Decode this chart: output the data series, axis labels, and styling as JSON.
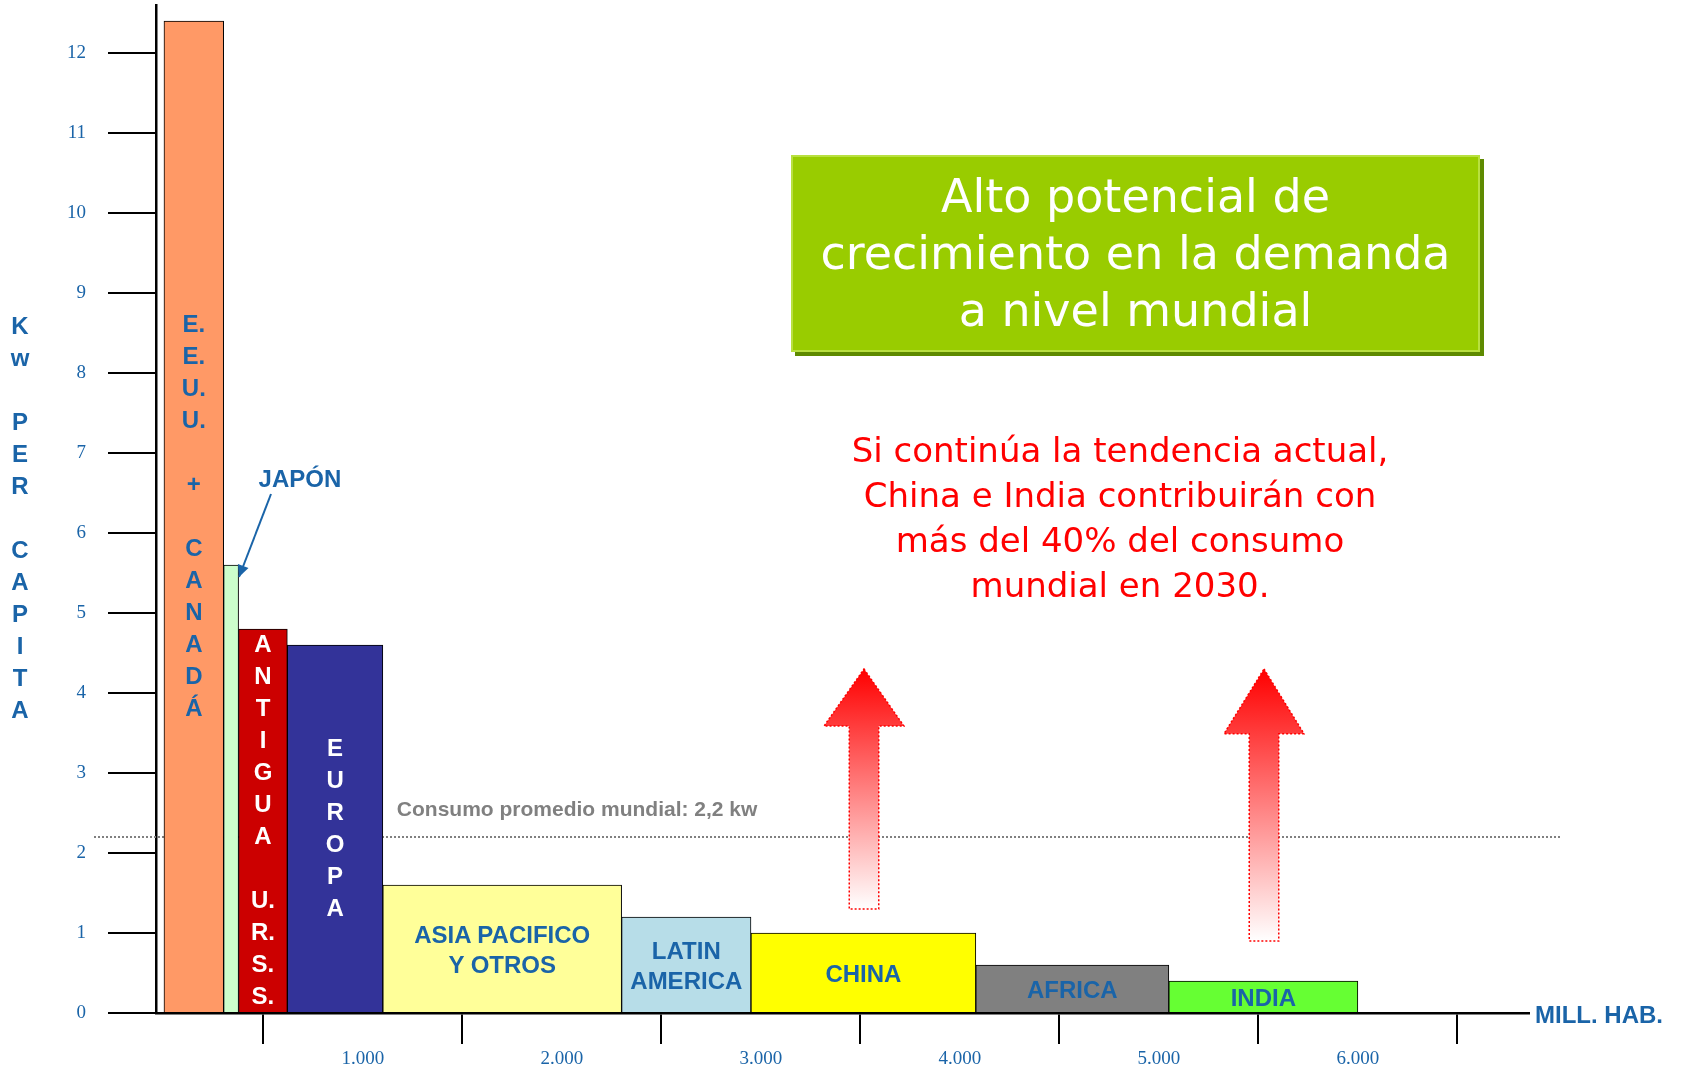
{
  "chart_data": {
    "type": "histogram",
    "bins": [
      0,
      300,
      375,
      620,
      1100,
      2300,
      2950,
      4080,
      5050,
      6000
    ],
    "values": [
      12.4,
      5.6,
      4.8,
      4.6,
      1.6,
      1.2,
      1.0,
      0.6,
      0.4
    ],
    "categories": [
      "E.E.U.U. + CANADÁ",
      "JAPÓN",
      "ANTIGUA U.R.S.S.",
      "EUROPA",
      "ASIA PACIFICO Y OTROS",
      "LATIN AMERICA",
      "CHINA",
      "AFRICA",
      "INDIA"
    ],
    "colors": [
      "#ff9966",
      "#ccffcc",
      "#cc0000",
      "#333399",
      "#ffff99",
      "#b7dde8",
      "#ffff00",
      "#808080",
      "#66ff33"
    ],
    "xlabel": "MILL. HAB.",
    "ylabel": "Kw PER CAPITA",
    "xlim": [
      -40,
      6860
    ],
    "xticks": [
      {
        "value": 1000,
        "label": "1.000"
      },
      {
        "value": 2000,
        "label": "2.000"
      },
      {
        "value": 3000,
        "label": "3.000"
      },
      {
        "value": 4000,
        "label": "4.000"
      },
      {
        "value": 5000,
        "label": "5.000"
      },
      {
        "value": 6000,
        "label": "6.000"
      }
    ],
    "ylim": [
      0,
      12.6
    ],
    "yticks": [
      0,
      1,
      2,
      3,
      4,
      5,
      6,
      7,
      8,
      9,
      10,
      11,
      12
    ],
    "ref_lines": [
      {
        "axis": "y",
        "value": 2.2,
        "label": "Consumo promedio mundial: 2,2 kw",
        "color": "#808080",
        "line_style": "dotted"
      }
    ],
    "annotations": [
      "Alto potencial de crecimiento en la demanda a nivel mundial",
      "Si continúa la tendencia actual, China e India contribuirán con más del 40% del consumo mundial en 2030."
    ],
    "grid": false,
    "legend": false
  }
}
